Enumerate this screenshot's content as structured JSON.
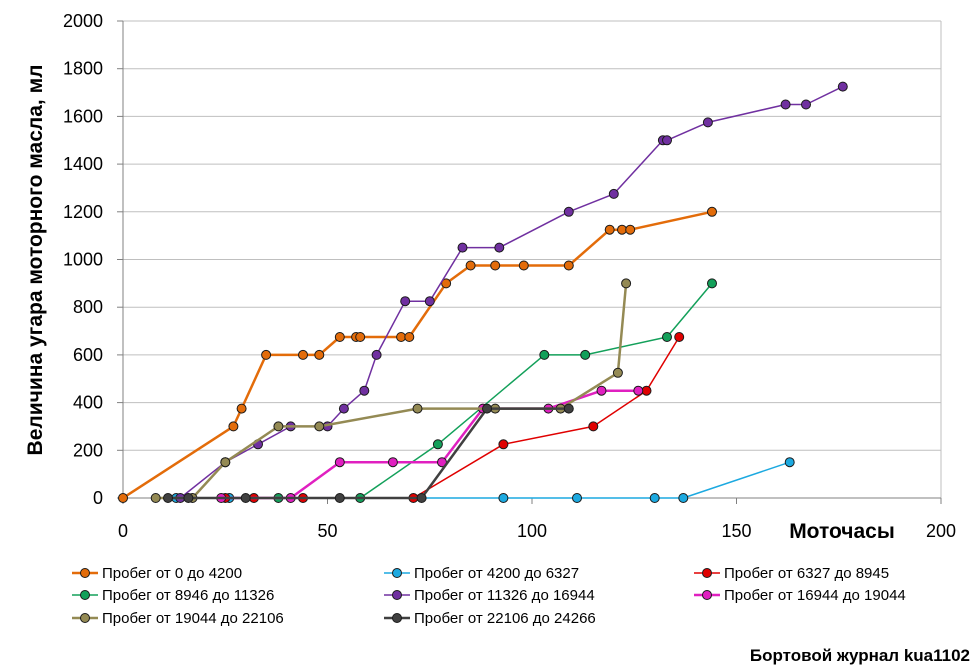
{
  "chart_data": {
    "type": "line",
    "title": "",
    "xlabel": "Моточасы",
    "ylabel": "Величина угара моторного масла, мл",
    "xlim": [
      0,
      200
    ],
    "ylim": [
      0,
      2000
    ],
    "x_ticks": [
      0,
      50,
      100,
      150,
      200
    ],
    "y_ticks": [
      0,
      200,
      400,
      600,
      800,
      1000,
      1200,
      1400,
      1600,
      1800,
      2000
    ],
    "grid": "horizontal",
    "legend_position": "bottom",
    "series": [
      {
        "name": "Пробег от 0 до 4200",
        "color": "#E36C0A",
        "line_width": 2.5,
        "points": [
          [
            0,
            0
          ],
          [
            27,
            300
          ],
          [
            29,
            375
          ],
          [
            35,
            600
          ],
          [
            44,
            600
          ],
          [
            48,
            600
          ],
          [
            53,
            675
          ],
          [
            57,
            675
          ],
          [
            58,
            675
          ],
          [
            68,
            675
          ],
          [
            70,
            675
          ],
          [
            79,
            900
          ],
          [
            85,
            975
          ],
          [
            91,
            975
          ],
          [
            98,
            975
          ],
          [
            109,
            975
          ],
          [
            119,
            1125
          ],
          [
            122,
            1125
          ],
          [
            124,
            1125
          ],
          [
            144,
            1200
          ]
        ]
      },
      {
        "name": "Пробег от 4200 до 6327",
        "color": "#1CA9E0",
        "line_width": 1.5,
        "points": [
          [
            13,
            0
          ],
          [
            26,
            0
          ],
          [
            93,
            0
          ],
          [
            111,
            0
          ],
          [
            130,
            0
          ],
          [
            137,
            0
          ],
          [
            163,
            150
          ]
        ]
      },
      {
        "name": "Пробег от 6327 до 8945",
        "color": "#E00000",
        "line_width": 1.5,
        "points": [
          [
            25,
            0
          ],
          [
            32,
            0
          ],
          [
            44,
            0
          ],
          [
            71,
            0
          ],
          [
            93,
            225
          ],
          [
            115,
            300
          ],
          [
            128,
            450
          ],
          [
            136,
            675
          ]
        ]
      },
      {
        "name": "Пробег от 8946 до 11326",
        "color": "#13A05A",
        "line_width": 1.5,
        "points": [
          [
            38,
            0
          ],
          [
            58,
            0
          ],
          [
            77,
            225
          ],
          [
            103,
            600
          ],
          [
            113,
            600
          ],
          [
            133,
            675
          ],
          [
            144,
            900
          ]
        ]
      },
      {
        "name": "Пробег от 11326 до 16944",
        "color": "#7030A0",
        "line_width": 1.5,
        "points": [
          [
            14,
            0
          ],
          [
            25,
            150
          ],
          [
            33,
            225
          ],
          [
            41,
            300
          ],
          [
            50,
            300
          ],
          [
            54,
            375
          ],
          [
            59,
            450
          ],
          [
            62,
            600
          ],
          [
            69,
            825
          ],
          [
            75,
            825
          ],
          [
            83,
            1050
          ],
          [
            92,
            1050
          ],
          [
            109,
            1200
          ],
          [
            120,
            1275
          ],
          [
            132,
            1500
          ],
          [
            133,
            1500
          ],
          [
            143,
            1575
          ],
          [
            162,
            1650
          ],
          [
            167,
            1650
          ],
          [
            176,
            1725
          ]
        ]
      },
      {
        "name": "Пробег от 16944 до 19044",
        "color": "#E020C0",
        "line_width": 2.5,
        "points": [
          [
            24,
            0
          ],
          [
            41,
            0
          ],
          [
            53,
            150
          ],
          [
            66,
            150
          ],
          [
            78,
            150
          ],
          [
            88,
            375
          ],
          [
            104,
            375
          ],
          [
            117,
            450
          ],
          [
            126,
            450
          ]
        ]
      },
      {
        "name": "Пробег от 19044 до 22106",
        "color": "#948A54",
        "line_width": 2.5,
        "points": [
          [
            8,
            0
          ],
          [
            17,
            0
          ],
          [
            25,
            150
          ],
          [
            38,
            300
          ],
          [
            48,
            300
          ],
          [
            72,
            375
          ],
          [
            91,
            375
          ],
          [
            107,
            375
          ],
          [
            121,
            525
          ],
          [
            123,
            900
          ]
        ]
      },
      {
        "name": "Пробег от 22106 до 24266",
        "color": "#404040",
        "line_width": 2.5,
        "points": [
          [
            11,
            0
          ],
          [
            16,
            0
          ],
          [
            30,
            0
          ],
          [
            53,
            0
          ],
          [
            73,
            0
          ],
          [
            89,
            375
          ],
          [
            109,
            375
          ]
        ]
      }
    ]
  },
  "credit": "Бортовой журнал kua1102"
}
